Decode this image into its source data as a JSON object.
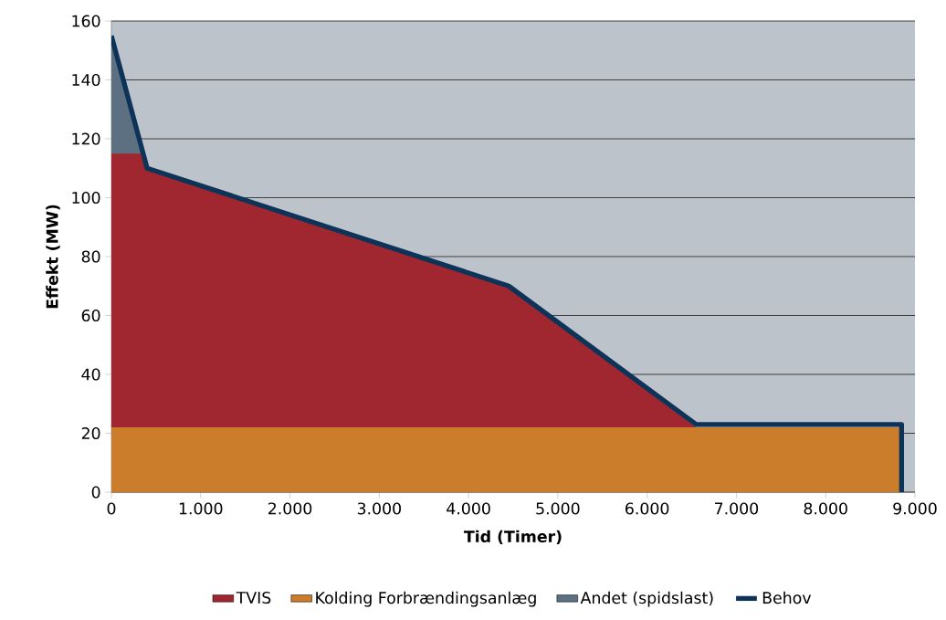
{
  "chart_data": {
    "type": "area",
    "xlabel": "Tid (Timer)",
    "ylabel": "Effekt (MW)",
    "xlim": [
      0,
      9000
    ],
    "ylim": [
      0,
      160
    ],
    "xticks": [
      0,
      {
        "value": 1000,
        "label": "1.000"
      },
      {
        "value": 2000,
        "label": "2.000"
      },
      {
        "value": 3000,
        "label": "3.000"
      },
      {
        "value": 4000,
        "label": "4.000"
      },
      {
        "value": 5000,
        "label": "5.000"
      },
      {
        "value": 6000,
        "label": "6.000"
      },
      {
        "value": 7000,
        "label": "7.000"
      },
      {
        "value": 8000,
        "label": "8.000"
      },
      {
        "value": 9000,
        "label": "9.000"
      }
    ],
    "yticks": [
      0,
      20,
      40,
      60,
      80,
      100,
      120,
      140,
      160
    ],
    "grid": "y",
    "legend": "bottom",
    "series": [
      {
        "name": "TVIS",
        "color": "#a0272f",
        "x": [
          0,
          340,
          400,
          4450,
          6550
        ],
        "values": [
          115,
          115,
          110,
          70,
          22
        ]
      },
      {
        "name": "Kolding Forbrændingsanlæg",
        "color": "#cc7d2b",
        "x": [
          0,
          8850
        ],
        "values": [
          22,
          22
        ]
      },
      {
        "name": "Andet (spidslast)",
        "color": "#5d7082",
        "x": [
          0,
          400
        ],
        "values": [
          155,
          110
        ]
      },
      {
        "name": "Behov",
        "type": "line",
        "color": "#0d3358",
        "x": [
          0,
          400,
          4450,
          6550,
          8850,
          8850
        ],
        "values": [
          155,
          110,
          70,
          23,
          23,
          0
        ]
      }
    ]
  }
}
